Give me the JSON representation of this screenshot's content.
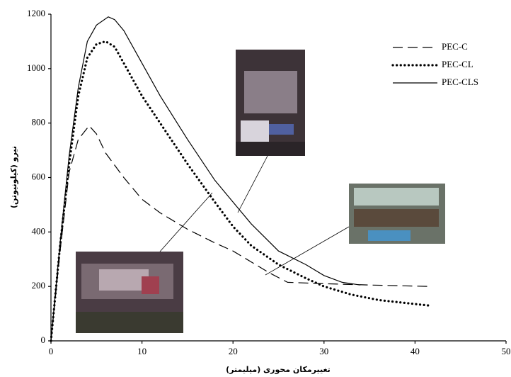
{
  "chart_data": {
    "type": "line",
    "x_label": "تغییرمکان محوری (میلیمتر)",
    "y_label": "نیرو (کیلونیوتن)",
    "xlim": [
      0,
      50
    ],
    "xticks": [
      0,
      10,
      20,
      30,
      40,
      50
    ],
    "ylim": [
      0,
      1200
    ],
    "yticks": [
      0,
      200,
      400,
      600,
      800,
      1000,
      1200
    ],
    "legend": "top-right",
    "series": [
      {
        "name": "PEC-C",
        "color": "#000000",
        "style": "dashed",
        "x": [
          0,
          1,
          2,
          3,
          4.2,
          5,
          6,
          8,
          10,
          12,
          15,
          18,
          20,
          22,
          24,
          26,
          30,
          35,
          41.5
        ],
        "values": [
          0,
          330,
          620,
          740,
          790,
          760,
          690,
          600,
          520,
          470,
          410,
          360,
          330,
          290,
          250,
          215,
          210,
          205,
          200
        ]
      },
      {
        "name": "PEC-CL",
        "color": "#000000",
        "style": "dotted",
        "x": [
          0,
          1,
          2,
          3,
          4,
          5,
          6,
          7,
          8,
          10,
          12,
          15,
          18,
          20,
          22,
          25,
          28,
          30,
          33,
          36,
          41.5
        ],
        "values": [
          0,
          350,
          650,
          900,
          1040,
          1090,
          1100,
          1080,
          1020,
          900,
          800,
          650,
          510,
          420,
          350,
          280,
          230,
          200,
          170,
          150,
          130
        ]
      },
      {
        "name": "PEC-CLS",
        "color": "#000000",
        "style": "solid",
        "x": [
          0,
          1,
          2,
          3,
          4,
          5,
          6.3,
          7,
          8,
          10,
          12,
          15,
          18,
          20,
          22,
          25,
          28,
          30,
          32,
          34
        ],
        "values": [
          0,
          360,
          680,
          930,
          1100,
          1160,
          1190,
          1180,
          1140,
          1020,
          900,
          740,
          590,
          510,
          430,
          330,
          280,
          240,
          215,
          205
        ]
      }
    ]
  }
}
